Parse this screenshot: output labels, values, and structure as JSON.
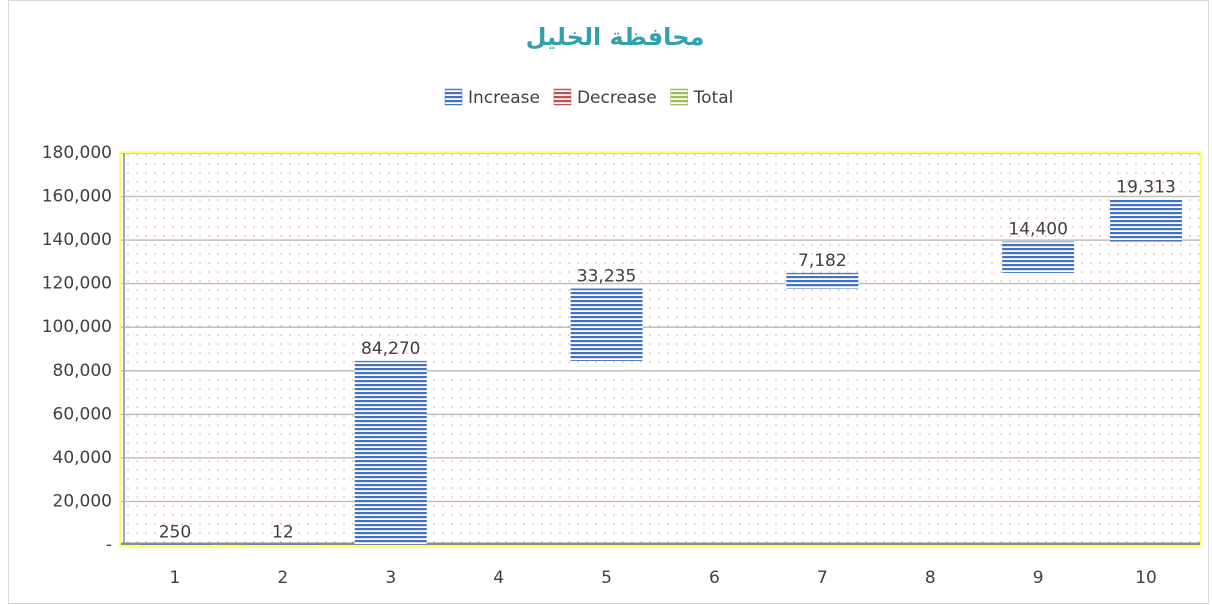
{
  "chart_data": {
    "type": "waterfall",
    "title": "محافظة الخليل",
    "categories": [
      "1",
      "2",
      "3",
      "4",
      "5",
      "6",
      "7",
      "8",
      "9",
      "10"
    ],
    "series": [
      {
        "name": "Increase",
        "color": "#4472c4",
        "values": [
          250,
          12,
          84270,
          null,
          33235,
          null,
          7182,
          null,
          14400,
          19313
        ],
        "value_labels": [
          "250",
          "12",
          "84,270",
          null,
          "33,235",
          null,
          "7,182",
          null,
          "14,400",
          "19,313"
        ]
      },
      {
        "name": "Decrease",
        "color": "#c0504d",
        "values": [
          null,
          null,
          null,
          null,
          null,
          null,
          null,
          null,
          null,
          null
        ]
      },
      {
        "name": "Total",
        "color": "#9bbb59",
        "values": [
          null,
          null,
          null,
          null,
          null,
          null,
          null,
          null,
          null,
          null
        ]
      }
    ],
    "ylim": [
      0,
      180000
    ],
    "yticks": [
      {
        "value": 0,
        "label": "-"
      },
      {
        "value": 20000,
        "label": "20,000"
      },
      {
        "value": 40000,
        "label": "40,000"
      },
      {
        "value": 60000,
        "label": "60,000"
      },
      {
        "value": 80000,
        "label": "80,000"
      },
      {
        "value": 100000,
        "label": "100,000"
      },
      {
        "value": 120000,
        "label": "120,000"
      },
      {
        "value": 140000,
        "label": "140,000"
      },
      {
        "value": 160000,
        "label": "160,000"
      },
      {
        "value": 180000,
        "label": "180,000"
      }
    ],
    "grid": true,
    "legend": "top"
  }
}
